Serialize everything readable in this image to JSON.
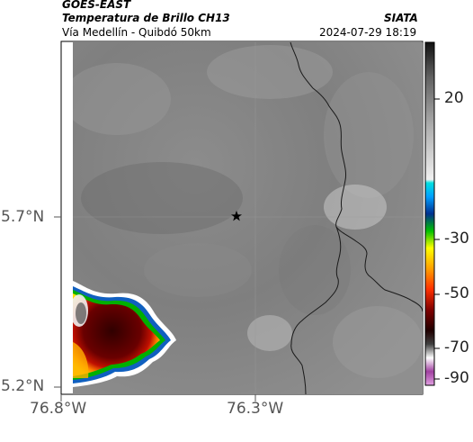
{
  "header": {
    "satellite": "GOES-EAST",
    "product": "Temperatura de Brillo CH13",
    "route": "Vía Medellín - Quibdó 50km",
    "source": "SIATA",
    "datetime": "2024-07-29 18:19"
  },
  "axes": {
    "lat_ticks": [
      "5.7°N",
      "5.2°N"
    ],
    "lon_ticks": [
      "76.8°W",
      "76.3°W"
    ]
  },
  "colorbar": {
    "ticks": [
      "20",
      "-30",
      "-50",
      "-70",
      "-90"
    ]
  },
  "marker": {
    "icon": "star-icon"
  },
  "colors": {
    "cloud_top": "#5a0000",
    "gray_bg": "#8a8a8a",
    "border_line": "#1a1a1a"
  }
}
